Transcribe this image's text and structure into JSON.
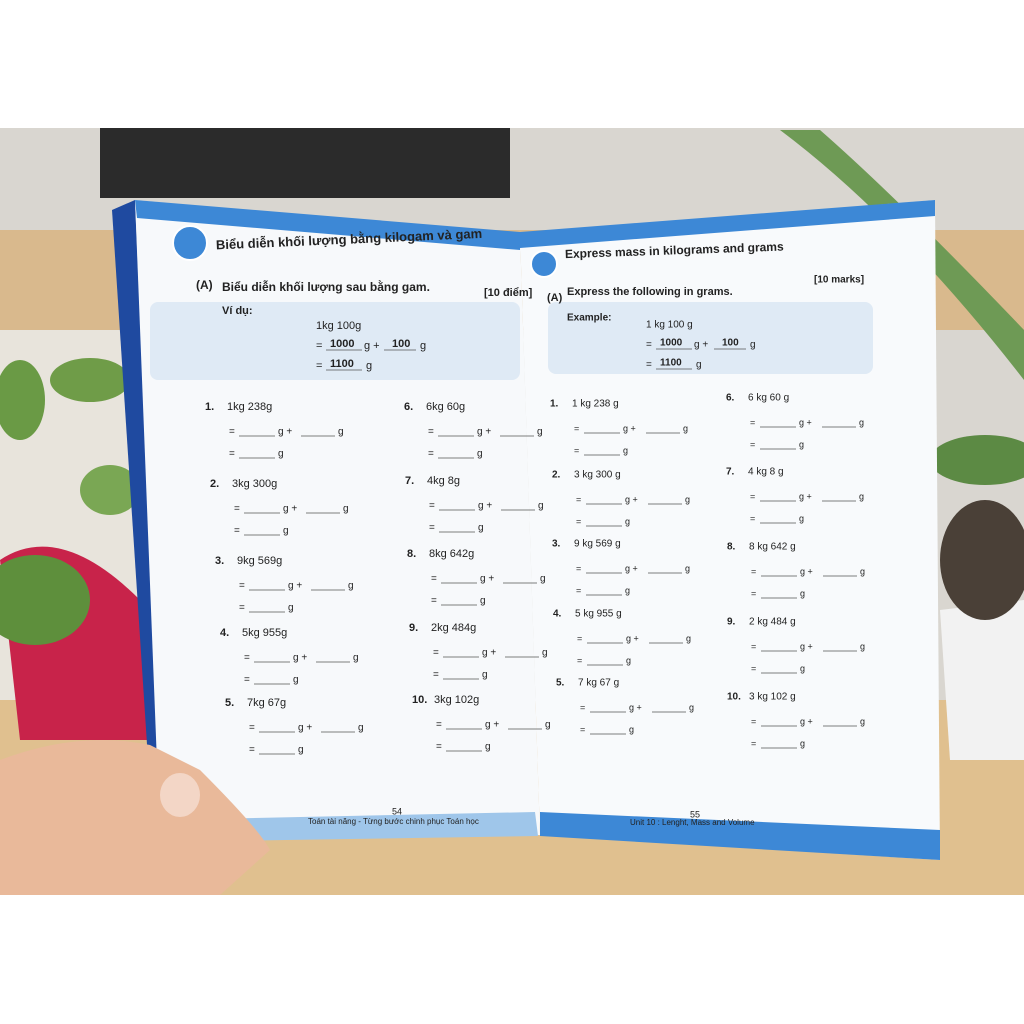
{
  "left_page": {
    "header": "Biểu diễn khối lượng bằng kilogam và gam",
    "section_label": "(A)",
    "section_title": "Biểu diễn khối lượng sau bằng gam.",
    "marks": "[10 điểm]",
    "example_label": "Ví dụ:",
    "example": {
      "problem": "1kg 100g",
      "kg_part": "1000",
      "g_part": "100",
      "total": "1100"
    },
    "equals": "=",
    "g_plus": "g +",
    "unit": "g",
    "exercises": [
      {
        "number": "1.",
        "problem": "1kg 238g"
      },
      {
        "number": "2.",
        "problem": "3kg 300g"
      },
      {
        "number": "3.",
        "problem": "9kg 569g"
      },
      {
        "number": "4.",
        "problem": "5kg 955g"
      },
      {
        "number": "5.",
        "problem": "7kg 67g"
      },
      {
        "number": "6.",
        "problem": "6kg 60g"
      },
      {
        "number": "7.",
        "problem": "4kg 8g"
      },
      {
        "number": "8.",
        "problem": "8kg 642g"
      },
      {
        "number": "9.",
        "problem": "2kg 484g"
      },
      {
        "number": "10.",
        "problem": "3kg 102g"
      }
    ],
    "page_number": "54",
    "footer": "Toán tài năng - Từng bước chinh phục Toán học"
  },
  "right_page": {
    "header": "Express mass in kilograms and grams",
    "section_label": "(A)",
    "section_title": "Express the following in grams.",
    "marks": "[10 marks]",
    "example_label": "Example:",
    "example": {
      "problem": "1 kg 100 g",
      "kg_part": "1000",
      "g_part": "100",
      "total": "1100"
    },
    "equals": "=",
    "g_plus": "g +",
    "unit": "g",
    "exercises": [
      {
        "number": "1.",
        "problem": "1 kg 238 g"
      },
      {
        "number": "2.",
        "problem": "3 kg 300 g"
      },
      {
        "number": "3.",
        "problem": "9 kg 569 g"
      },
      {
        "number": "4.",
        "problem": "5 kg 955 g"
      },
      {
        "number": "5.",
        "problem": "7 kg 67 g"
      },
      {
        "number": "6.",
        "problem": "6 kg 60 g"
      },
      {
        "number": "7.",
        "problem": "4 kg 8 g"
      },
      {
        "number": "8.",
        "problem": "8 kg 642 g"
      },
      {
        "number": "9.",
        "problem": "2 kg 484 g"
      },
      {
        "number": "10.",
        "problem": "3 kg 102 g"
      }
    ],
    "page_number": "55",
    "footer": "Unit 10 : Lenght, Mass and Volume"
  }
}
